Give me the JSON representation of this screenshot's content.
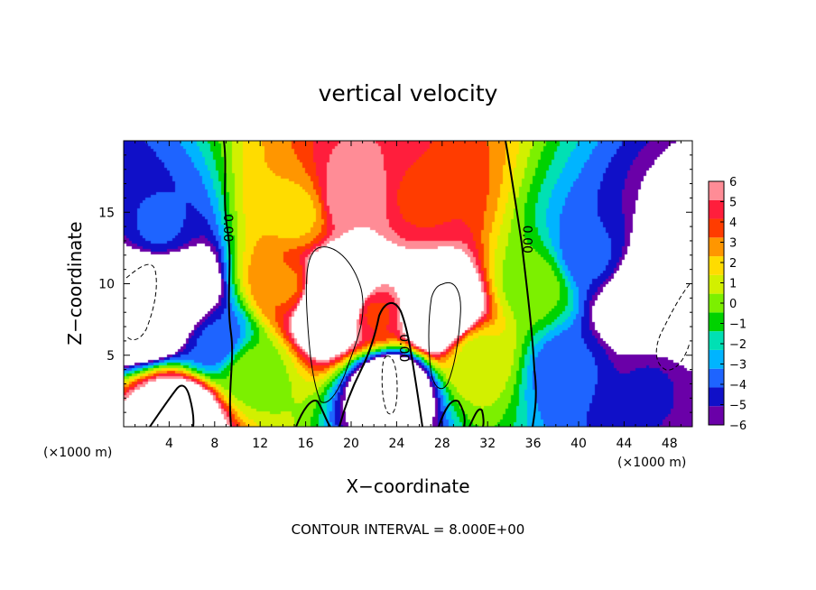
{
  "chart_data": {
    "type": "heatmap",
    "title": "vertical velocity",
    "xlabel": "X−coordinate",
    "ylabel": "Z−coordinate",
    "x_unit_label": "(×1000 m)",
    "x_unit_label_right": "(×1000 m)",
    "xlim": [
      0,
      50
    ],
    "ylim": [
      0,
      20
    ],
    "x_ticks": [
      4,
      8,
      12,
      16,
      20,
      24,
      28,
      32,
      36,
      40,
      44,
      48
    ],
    "x_tick_labels": [
      "4",
      "8",
      "12",
      "16",
      "20",
      "24",
      "28",
      "32",
      "36",
      "40",
      "44",
      "48"
    ],
    "y_ticks": [
      5,
      10,
      15
    ],
    "y_tick_labels": [
      "5",
      "10",
      "15"
    ],
    "colorbar": {
      "min": -6,
      "max": 6,
      "ticks": [
        6,
        5,
        4,
        3,
        2,
        1,
        0,
        -1,
        -2,
        -3,
        -4,
        -5,
        -6
      ],
      "tick_labels": [
        "6",
        "5",
        "4",
        "3",
        "2",
        "1",
        "0",
        "−1",
        "−2",
        "−3",
        "−4",
        "−5",
        "−6"
      ],
      "colors": [
        "#6a00a8",
        "#1010c8",
        "#1e64ff",
        "#00b4ff",
        "#00e0b4",
        "#00d200",
        "#7cf000",
        "#d2f000",
        "#ffdc00",
        "#ff9600",
        "#ff3c00",
        "#ff1e3c",
        "#ff8c96"
      ]
    },
    "cells": [
      {
        "x": 5,
        "z": 1,
        "w": 10
      },
      {
        "x": 3,
        "z": 9,
        "w": -25
      },
      {
        "x": 3,
        "z": 14,
        "w": -4
      },
      {
        "x": 8,
        "z": 6,
        "w": -4
      },
      {
        "x": 11,
        "z": 4,
        "w": 0
      },
      {
        "x": 14,
        "z": 10,
        "w": 3
      },
      {
        "x": 15,
        "z": 15,
        "w": 2
      },
      {
        "x": 18.5,
        "z": 9,
        "w": 20
      },
      {
        "x": 20,
        "z": 16,
        "w": 6
      },
      {
        "x": 22,
        "z": 8,
        "w": 4
      },
      {
        "x": 23.5,
        "z": 3,
        "w": -10
      },
      {
        "x": 26,
        "z": 16,
        "w": 4
      },
      {
        "x": 27.5,
        "z": 8,
        "w": 14
      },
      {
        "x": 31,
        "z": 5,
        "w": 1
      },
      {
        "x": 36,
        "z": 10,
        "w": 0
      },
      {
        "x": 39,
        "z": 4,
        "w": -4
      },
      {
        "x": 41,
        "z": 12,
        "w": -4
      },
      {
        "x": 46.5,
        "z": 9,
        "w": -18
      },
      {
        "x": 46,
        "z": 3,
        "w": -5
      }
    ],
    "contour_labels": [
      {
        "text": "0.00",
        "x": 8.8,
        "z": 13.9
      },
      {
        "text": "0.00",
        "x": 24.3,
        "z": 5.5
      },
      {
        "text": "0.00",
        "x": 35.1,
        "z": 13.1
      }
    ],
    "footnote": "CONTOUR INTERVAL = 8.000E+00"
  }
}
